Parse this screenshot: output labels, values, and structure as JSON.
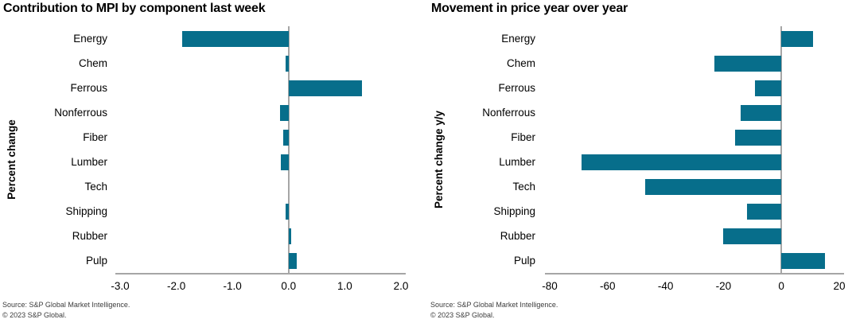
{
  "colors": {
    "bar": "#076e8b",
    "axis_line": "#a6a6a6",
    "title_text": "#000000",
    "source_text": "#3c3c3c"
  },
  "source": {
    "line1": "Source: S&P Global Market Intelligence.",
    "line2": "© 2023 S&P Global."
  },
  "chart_data": [
    {
      "type": "bar",
      "orientation": "horizontal",
      "title": "Contribution to MPI by component last week",
      "ylabel": "Percent change",
      "xlabel": "",
      "grid": false,
      "legend": false,
      "categories": [
        "Energy",
        "Chem",
        "Ferrous",
        "Nonferrous",
        "Fiber",
        "Lumber",
        "Tech",
        "Shipping",
        "Rubber",
        "Pulp"
      ],
      "values": [
        -1.9,
        -0.06,
        1.3,
        -0.15,
        -0.1,
        -0.14,
        0.0,
        -0.05,
        0.05,
        0.14
      ],
      "xlim": [
        -3.0,
        2.0
      ],
      "xticks": [
        -3.0,
        -2.0,
        -1.0,
        0.0,
        1.0,
        2.0
      ],
      "xtick_labels": [
        "-3.0",
        "-2.0",
        "-1.0",
        "0.0",
        "1.0",
        "2.0"
      ]
    },
    {
      "type": "bar",
      "orientation": "horizontal",
      "title": "Movement in price year over year",
      "ylabel": "Percent change y/y",
      "xlabel": "",
      "grid": false,
      "legend": false,
      "categories": [
        "Energy",
        "Chem",
        "Ferrous",
        "Nonferrous",
        "Fiber",
        "Lumber",
        "Tech",
        "Shipping",
        "Rubber",
        "Pulp"
      ],
      "values": [
        11,
        -23,
        -9,
        -14,
        -16,
        -69,
        -47,
        -12,
        -20,
        15
      ],
      "xlim": [
        -80,
        20
      ],
      "xticks": [
        -80,
        -60,
        -40,
        -20,
        0,
        20
      ],
      "xtick_labels": [
        "-80",
        "-60",
        "-40",
        "-20",
        "0",
        "20"
      ]
    }
  ]
}
